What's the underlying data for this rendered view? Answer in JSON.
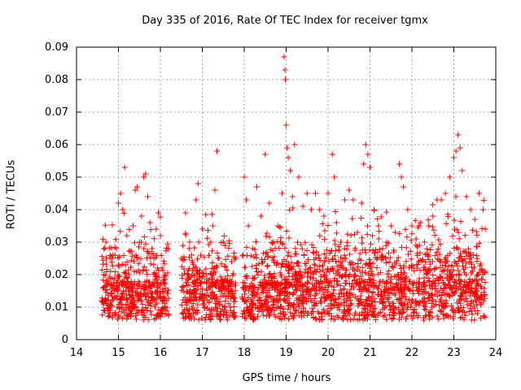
{
  "chart_data": {
    "type": "scatter",
    "title": "Day 335 of 2016, Rate Of TEC Index for receiver tgmx",
    "xlabel": "GPS time / hours",
    "ylabel": "ROTI / TECUs",
    "xlim": [
      14,
      24
    ],
    "ylim": [
      0,
      0.09
    ],
    "x_ticks": [
      "14",
      "15",
      "16",
      "17",
      "18",
      "19",
      "20",
      "21",
      "22",
      "23",
      "24"
    ],
    "y_ticks": [
      "0",
      "0.01",
      "0.02",
      "0.03",
      "0.04",
      "0.05",
      "0.06",
      "0.07",
      "0.08",
      "0.09"
    ],
    "grid": true,
    "marker": "+",
    "color": "#ff0000",
    "x_data_gaps": [
      [
        16.2,
        16.5
      ],
      [
        17.8,
        17.95
      ]
    ],
    "series": [
      {
        "points": [
          [
            14.6,
            0.012
          ],
          [
            14.65,
            0.02
          ],
          [
            14.7,
            0.03
          ],
          [
            14.75,
            0.018
          ],
          [
            14.8,
            0.01
          ],
          [
            14.85,
            0.025
          ],
          [
            14.9,
            0.015
          ],
          [
            14.95,
            0.028
          ],
          [
            15.0,
            0.042
          ],
          [
            15.05,
            0.045
          ],
          [
            15.1,
            0.04
          ],
          [
            15.15,
            0.053
          ],
          [
            15.2,
            0.032
          ],
          [
            15.25,
            0.02
          ],
          [
            15.3,
            0.013
          ],
          [
            15.35,
            0.035
          ],
          [
            15.4,
            0.046
          ],
          [
            15.45,
            0.047
          ],
          [
            15.5,
            0.03
          ],
          [
            15.55,
            0.038
          ],
          [
            15.6,
            0.05
          ],
          [
            15.65,
            0.051
          ],
          [
            15.7,
            0.044
          ],
          [
            15.75,
            0.036
          ],
          [
            15.8,
            0.028
          ],
          [
            15.85,
            0.025
          ],
          [
            15.9,
            0.034
          ],
          [
            15.95,
            0.039
          ],
          [
            16.0,
            0.032
          ],
          [
            16.1,
            0.02
          ],
          [
            16.15,
            0.012
          ],
          [
            16.5,
            0.025
          ],
          [
            16.6,
            0.039
          ],
          [
            16.7,
            0.03
          ],
          [
            16.8,
            0.022
          ],
          [
            16.85,
            0.043
          ],
          [
            16.9,
            0.048
          ],
          [
            17.0,
            0.034
          ],
          [
            17.1,
            0.02
          ],
          [
            17.2,
            0.03
          ],
          [
            17.25,
            0.035
          ],
          [
            17.3,
            0.046
          ],
          [
            17.35,
            0.058
          ],
          [
            17.4,
            0.025
          ],
          [
            17.5,
            0.03
          ],
          [
            17.6,
            0.018
          ],
          [
            17.7,
            0.024
          ],
          [
            18.0,
            0.05
          ],
          [
            18.05,
            0.043
          ],
          [
            18.1,
            0.035
          ],
          [
            18.2,
            0.028
          ],
          [
            18.3,
            0.047
          ],
          [
            18.4,
            0.038
          ],
          [
            18.5,
            0.057
          ],
          [
            18.6,
            0.042
          ],
          [
            18.7,
            0.03
          ],
          [
            18.8,
            0.035
          ],
          [
            18.9,
            0.045
          ],
          [
            18.95,
            0.087
          ],
          [
            18.97,
            0.083
          ],
          [
            18.98,
            0.08
          ],
          [
            19.0,
            0.066
          ],
          [
            19.02,
            0.059
          ],
          [
            19.05,
            0.056
          ],
          [
            19.1,
            0.052
          ],
          [
            19.15,
            0.044
          ],
          [
            19.2,
            0.06
          ],
          [
            19.3,
            0.05
          ],
          [
            19.4,
            0.041
          ],
          [
            19.5,
            0.045
          ],
          [
            19.6,
            0.04
          ],
          [
            19.7,
            0.045
          ],
          [
            19.8,
            0.04
          ],
          [
            19.9,
            0.038
          ],
          [
            20.0,
            0.045
          ],
          [
            20.1,
            0.057
          ],
          [
            20.15,
            0.05
          ],
          [
            20.2,
            0.036
          ],
          [
            20.3,
            0.03
          ],
          [
            20.4,
            0.043
          ],
          [
            20.5,
            0.046
          ],
          [
            20.6,
            0.043
          ],
          [
            20.7,
            0.033
          ],
          [
            20.8,
            0.042
          ],
          [
            20.85,
            0.054
          ],
          [
            20.9,
            0.06
          ],
          [
            20.95,
            0.057
          ],
          [
            21.0,
            0.053
          ],
          [
            21.1,
            0.04
          ],
          [
            21.2,
            0.035
          ],
          [
            21.3,
            0.028
          ],
          [
            21.4,
            0.03
          ],
          [
            21.5,
            0.035
          ],
          [
            21.6,
            0.033
          ],
          [
            21.7,
            0.054
          ],
          [
            21.75,
            0.05
          ],
          [
            21.8,
            0.047
          ],
          [
            21.9,
            0.04
          ],
          [
            22.0,
            0.035
          ],
          [
            22.1,
            0.031
          ],
          [
            22.2,
            0.036
          ],
          [
            22.3,
            0.03
          ],
          [
            22.4,
            0.035
          ],
          [
            22.5,
            0.038
          ],
          [
            22.6,
            0.043
          ],
          [
            22.7,
            0.043
          ],
          [
            22.8,
            0.045
          ],
          [
            22.9,
            0.05
          ],
          [
            23.0,
            0.056
          ],
          [
            23.05,
            0.058
          ],
          [
            23.1,
            0.063
          ],
          [
            23.15,
            0.059
          ],
          [
            23.2,
            0.052
          ],
          [
            23.3,
            0.044
          ],
          [
            23.4,
            0.04
          ],
          [
            23.5,
            0.037
          ],
          [
            23.6,
            0.045
          ],
          [
            23.7,
            0.04
          ],
          [
            23.75,
            0.034
          ]
        ]
      }
    ]
  }
}
